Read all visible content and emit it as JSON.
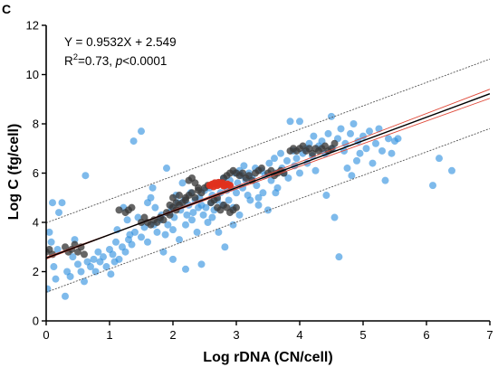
{
  "chart_data": {
    "type": "scatter",
    "panel_label": "C",
    "xlabel": "Log rDNA (CN/cell)",
    "ylabel": "Log C (fg/cell)",
    "xlim": [
      0,
      7
    ],
    "ylim": [
      0,
      12
    ],
    "x_ticks": [
      "0",
      "1",
      "2",
      "3",
      "4",
      "5",
      "6",
      "7"
    ],
    "y_ticks": [
      "0",
      "2",
      "4",
      "6",
      "8",
      "10",
      "12"
    ],
    "grid": false,
    "annotation": {
      "equation": "Y = 0.9532X + 2.549",
      "r2_prefix": "R",
      "r2_sup": "2",
      "r2_value": "=0.73, ",
      "p_italic": "p",
      "p_value": "<0.0001"
    },
    "regression": {
      "slope": 0.9532,
      "intercept": 2.549,
      "color": "#000000"
    },
    "confidence_band": {
      "color": "#e04a3a",
      "upper": {
        "slope": 0.985,
        "intercept": 2.51
      },
      "lower": {
        "slope": 0.921,
        "intercept": 2.59
      }
    },
    "prediction_band": {
      "color": "#555555",
      "upper": {
        "slope": 0.95,
        "intercept": 3.98
      },
      "lower": {
        "slope": 0.95,
        "intercept": 1.16
      }
    },
    "colors": {
      "blue": "#2f8fde",
      "dark": "#3a3a3a",
      "red": "#e0301e"
    },
    "series": [
      {
        "color_key": "blue",
        "points": [
          [
            0.02,
            1.3
          ],
          [
            0.05,
            3.6
          ],
          [
            0.1,
            4.8
          ],
          [
            0.12,
            2.2
          ],
          [
            0.15,
            1.7
          ],
          [
            0.2,
            4.4
          ],
          [
            0.25,
            4.8
          ],
          [
            0.3,
            1.0
          ],
          [
            0.33,
            2.0
          ],
          [
            0.38,
            1.8
          ],
          [
            0.42,
            2.6
          ],
          [
            0.5,
            2.3
          ],
          [
            0.55,
            2.0
          ],
          [
            0.6,
            1.6
          ],
          [
            0.62,
            5.9
          ],
          [
            0.65,
            2.4
          ],
          [
            0.7,
            2.2
          ],
          [
            0.75,
            2.5
          ],
          [
            0.78,
            2.0
          ],
          [
            0.82,
            2.8
          ],
          [
            0.85,
            2.4
          ],
          [
            0.9,
            2.6
          ],
          [
            0.95,
            2.2
          ],
          [
            1.0,
            2.9
          ],
          [
            1.02,
            1.9
          ],
          [
            1.05,
            2.7
          ],
          [
            1.1,
            3.2
          ],
          [
            1.12,
            3.7
          ],
          [
            1.15,
            2.5
          ],
          [
            1.2,
            3.0
          ],
          [
            1.22,
            4.6
          ],
          [
            1.25,
            2.8
          ],
          [
            1.3,
            3.3
          ],
          [
            1.32,
            3.5
          ],
          [
            1.35,
            3.1
          ],
          [
            1.38,
            7.3
          ],
          [
            1.4,
            3.6
          ],
          [
            1.45,
            4.2
          ],
          [
            1.5,
            7.7
          ],
          [
            1.5,
            3.4
          ],
          [
            1.55,
            3.8
          ],
          [
            1.6,
            4.8
          ],
          [
            1.6,
            3.2
          ],
          [
            1.65,
            5.0
          ],
          [
            1.7,
            3.9
          ],
          [
            1.72,
            4.6
          ],
          [
            1.75,
            3.6
          ],
          [
            1.8,
            4.1
          ],
          [
            1.82,
            4.3
          ],
          [
            1.85,
            2.8
          ],
          [
            1.88,
            3.5
          ],
          [
            1.9,
            6.2
          ],
          [
            1.92,
            3.9
          ],
          [
            1.95,
            4.4
          ],
          [
            1.98,
            4.6
          ],
          [
            2.0,
            3.7
          ],
          [
            2.0,
            2.5
          ],
          [
            2.02,
            4.2
          ],
          [
            2.05,
            5.1
          ],
          [
            2.08,
            4.8
          ],
          [
            2.1,
            3.3
          ],
          [
            2.12,
            4.5
          ],
          [
            2.15,
            5.6
          ],
          [
            2.18,
            4.9
          ],
          [
            2.2,
            3.9
          ],
          [
            2.2,
            2.1
          ],
          [
            2.22,
            4.3
          ],
          [
            2.25,
            4.7
          ],
          [
            2.28,
            5.2
          ],
          [
            2.3,
            4.1
          ],
          [
            2.32,
            4.4
          ],
          [
            2.35,
            4.9
          ],
          [
            2.38,
            3.6
          ],
          [
            2.4,
            4.6
          ],
          [
            2.42,
            5.0
          ],
          [
            2.45,
            4.7
          ],
          [
            2.48,
            4.3
          ],
          [
            2.5,
            5.3
          ],
          [
            2.52,
            4.6
          ],
          [
            2.55,
            4.0
          ],
          [
            2.58,
            5.4
          ],
          [
            2.6,
            4.8
          ],
          [
            2.62,
            5.1
          ],
          [
            2.65,
            4.5
          ],
          [
            2.68,
            5.6
          ],
          [
            2.7,
            4.9
          ],
          [
            2.72,
            3.6
          ],
          [
            2.75,
            5.2
          ],
          [
            2.78,
            4.7
          ],
          [
            2.8,
            5.8
          ],
          [
            2.82,
            3.0
          ],
          [
            2.85,
            5.3
          ],
          [
            2.88,
            4.9
          ],
          [
            2.9,
            5.7
          ],
          [
            2.92,
            5.4
          ],
          [
            2.95,
            4.6
          ],
          [
            2.98,
            6.0
          ],
          [
            3.0,
            5.2
          ],
          [
            3.02,
            5.6
          ],
          [
            3.05,
            4.3
          ],
          [
            3.08,
            5.9
          ],
          [
            3.1,
            5.4
          ],
          [
            3.12,
            6.3
          ],
          [
            3.15,
            5.7
          ],
          [
            3.18,
            5.1
          ],
          [
            3.2,
            6.0
          ],
          [
            3.22,
            4.9
          ],
          [
            3.25,
            5.8
          ],
          [
            3.3,
            6.2
          ],
          [
            3.32,
            5.5
          ],
          [
            3.35,
            4.7
          ],
          [
            3.4,
            6.1
          ],
          [
            3.42,
            5.2
          ],
          [
            3.45,
            5.9
          ],
          [
            3.5,
            4.5
          ],
          [
            3.52,
            6.4
          ],
          [
            3.55,
            5.7
          ],
          [
            3.6,
            6.6
          ],
          [
            3.62,
            6.0
          ],
          [
            3.65,
            5.4
          ],
          [
            3.7,
            6.8
          ],
          [
            3.72,
            6.2
          ],
          [
            3.75,
            6.0
          ],
          [
            3.8,
            6.5
          ],
          [
            3.82,
            5.8
          ],
          [
            3.85,
            8.1
          ],
          [
            3.9,
            6.9
          ],
          [
            3.92,
            6.3
          ],
          [
            3.95,
            6.6
          ],
          [
            4.0,
            8.1
          ],
          [
            4.0,
            6.0
          ],
          [
            4.05,
            6.8
          ],
          [
            4.1,
            7.0
          ],
          [
            4.12,
            6.4
          ],
          [
            4.15,
            7.2
          ],
          [
            4.2,
            6.7
          ],
          [
            4.22,
            7.5
          ],
          [
            4.25,
            6.1
          ],
          [
            4.3,
            7.1
          ],
          [
            4.35,
            7.3
          ],
          [
            4.4,
            6.8
          ],
          [
            4.42,
            5.1
          ],
          [
            4.45,
            7.6
          ],
          [
            4.5,
            8.3
          ],
          [
            4.52,
            7.0
          ],
          [
            4.55,
            4.2
          ],
          [
            4.6,
            7.4
          ],
          [
            4.62,
            2.6
          ],
          [
            4.65,
            7.8
          ],
          [
            4.7,
            6.9
          ],
          [
            4.72,
            7.2
          ],
          [
            4.75,
            6.2
          ],
          [
            4.8,
            7.6
          ],
          [
            4.82,
            5.9
          ],
          [
            4.85,
            8.0
          ],
          [
            4.9,
            6.5
          ],
          [
            4.92,
            7.3
          ],
          [
            4.95,
            6.8
          ],
          [
            5.0,
            7.5
          ],
          [
            5.05,
            7.0
          ],
          [
            5.1,
            7.7
          ],
          [
            5.15,
            6.4
          ],
          [
            5.2,
            7.2
          ],
          [
            5.25,
            7.8
          ],
          [
            5.3,
            6.9
          ],
          [
            5.35,
            5.7
          ],
          [
            5.4,
            7.4
          ],
          [
            5.45,
            6.8
          ],
          [
            5.5,
            7.3
          ],
          [
            5.55,
            7.4
          ],
          [
            6.1,
            5.5
          ],
          [
            6.2,
            6.6
          ],
          [
            6.4,
            6.1
          ],
          [
            0.08,
            3.2
          ],
          [
            0.18,
            2.9
          ],
          [
            0.45,
            3.3
          ],
          [
            1.08,
            2.4
          ],
          [
            1.28,
            4.1
          ],
          [
            1.68,
            5.4
          ],
          [
            2.45,
            2.3
          ],
          [
            2.95,
            3.9
          ],
          [
            3.35,
            5.0
          ],
          [
            3.62,
            5.2
          ],
          [
            3.05,
            6.1
          ],
          [
            2.62,
            4.2
          ]
        ]
      },
      {
        "color_key": "dark",
        "points": [
          [
            0.0,
            2.8
          ],
          [
            0.05,
            2.9
          ],
          [
            0.1,
            2.7
          ],
          [
            0.3,
            3.0
          ],
          [
            0.35,
            2.8
          ],
          [
            0.4,
            2.9
          ],
          [
            0.45,
            3.1
          ],
          [
            0.5,
            2.8
          ],
          [
            0.55,
            3.0
          ],
          [
            0.6,
            2.7
          ],
          [
            1.15,
            4.5
          ],
          [
            1.25,
            4.4
          ],
          [
            1.3,
            4.5
          ],
          [
            1.35,
            4.6
          ],
          [
            1.5,
            4.0
          ],
          [
            1.55,
            4.2
          ],
          [
            1.6,
            4.0
          ],
          [
            1.65,
            3.9
          ],
          [
            1.7,
            4.1
          ],
          [
            1.75,
            4.0
          ],
          [
            1.8,
            4.2
          ],
          [
            1.85,
            4.1
          ],
          [
            1.9,
            4.4
          ],
          [
            1.95,
            4.3
          ],
          [
            2.0,
            4.6
          ],
          [
            2.05,
            4.5
          ],
          [
            2.1,
            4.7
          ],
          [
            2.15,
            4.8
          ],
          [
            2.2,
            5.0
          ],
          [
            2.25,
            5.1
          ],
          [
            2.3,
            5.2
          ],
          [
            2.35,
            5.0
          ],
          [
            2.4,
            5.3
          ],
          [
            2.45,
            5.2
          ],
          [
            2.5,
            5.4
          ],
          [
            2.55,
            5.5
          ],
          [
            2.35,
            5.6
          ],
          [
            2.4,
            5.4
          ],
          [
            2.3,
            5.8
          ],
          [
            2.25,
            5.7
          ],
          [
            2.2,
            4.9
          ],
          [
            2.1,
            5.1
          ],
          [
            2.05,
            4.8
          ],
          [
            2.0,
            5.0
          ],
          [
            1.95,
            4.7
          ],
          [
            2.6,
            4.8
          ],
          [
            2.65,
            4.9
          ],
          [
            2.7,
            5.0
          ],
          [
            2.75,
            5.6
          ],
          [
            2.8,
            5.8
          ],
          [
            2.85,
            5.9
          ],
          [
            2.9,
            6.0
          ],
          [
            2.95,
            6.1
          ],
          [
            3.0,
            6.0
          ],
          [
            3.05,
            5.9
          ],
          [
            3.1,
            6.0
          ],
          [
            3.15,
            5.8
          ],
          [
            3.2,
            5.9
          ],
          [
            3.25,
            5.7
          ],
          [
            3.3,
            6.0
          ],
          [
            3.35,
            6.1
          ],
          [
            3.4,
            6.2
          ],
          [
            3.5,
            6.0
          ],
          [
            3.55,
            6.1
          ],
          [
            3.6,
            5.9
          ],
          [
            3.65,
            6.0
          ],
          [
            3.7,
            6.1
          ],
          [
            3.75,
            6.0
          ],
          [
            3.85,
            6.9
          ],
          [
            3.9,
            7.0
          ],
          [
            3.95,
            6.9
          ],
          [
            4.0,
            7.0
          ],
          [
            4.05,
            7.1
          ],
          [
            4.1,
            6.9
          ],
          [
            4.15,
            7.0
          ],
          [
            4.2,
            6.8
          ],
          [
            4.25,
            7.0
          ],
          [
            4.3,
            6.9
          ],
          [
            4.35,
            7.0
          ],
          [
            4.4,
            7.1
          ],
          [
            4.45,
            6.9
          ],
          [
            4.5,
            7.0
          ],
          [
            4.55,
            7.2
          ],
          [
            2.7,
            4.6
          ],
          [
            2.75,
            4.5
          ],
          [
            2.8,
            4.7
          ],
          [
            2.85,
            4.6
          ],
          [
            2.9,
            4.4
          ],
          [
            2.95,
            4.5
          ],
          [
            3.0,
            4.6
          ]
        ]
      },
      {
        "color_key": "red",
        "points": [
          [
            2.58,
            5.5
          ],
          [
            2.62,
            5.55
          ],
          [
            2.66,
            5.6
          ],
          [
            2.7,
            5.5
          ],
          [
            2.74,
            5.55
          ],
          [
            2.78,
            5.6
          ],
          [
            2.82,
            5.5
          ],
          [
            2.86,
            5.55
          ],
          [
            2.9,
            5.5
          ],
          [
            2.64,
            5.45
          ],
          [
            2.72,
            5.62
          ],
          [
            2.8,
            5.48
          ]
        ]
      }
    ]
  }
}
